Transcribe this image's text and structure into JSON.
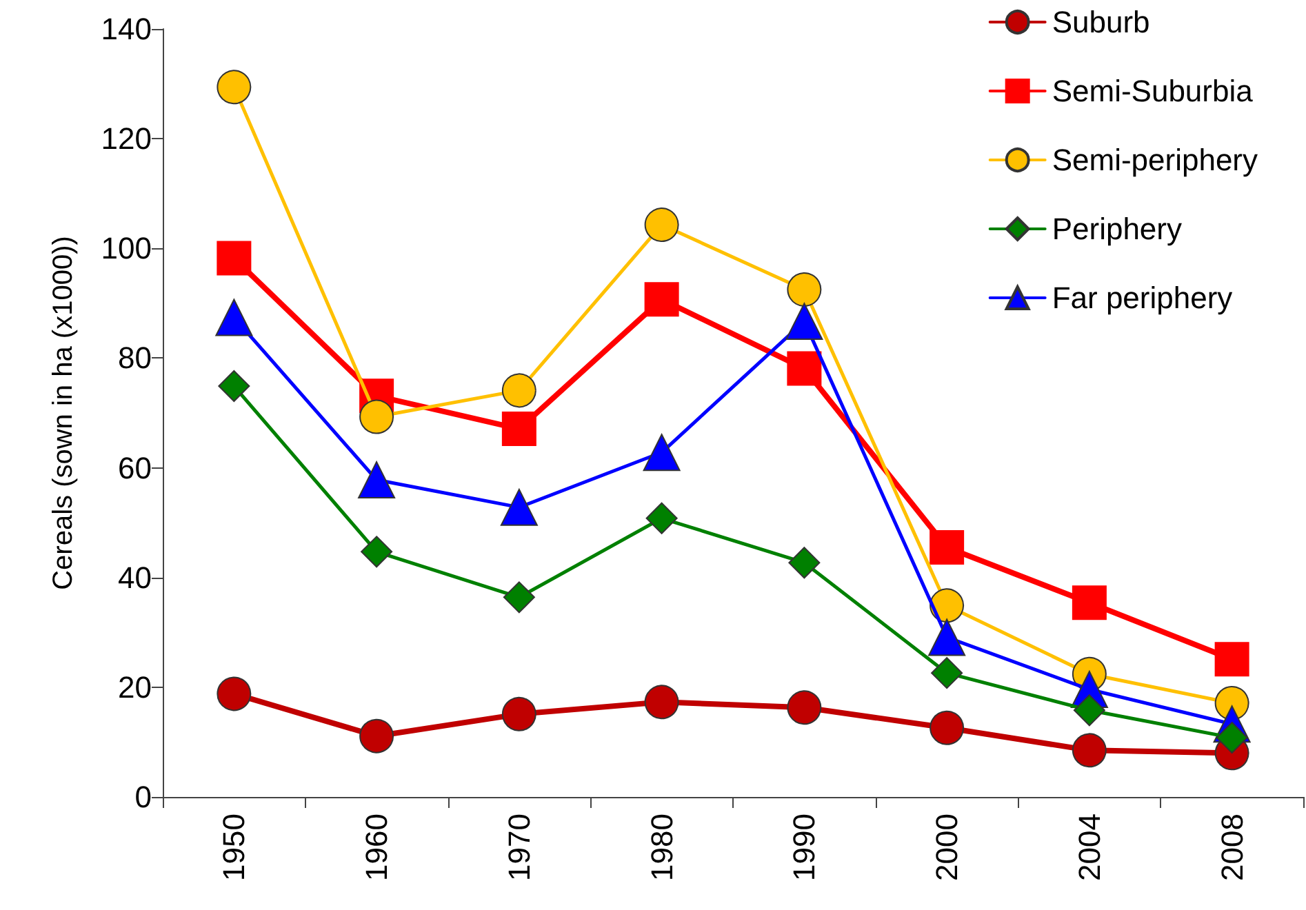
{
  "chart_data": {
    "type": "line",
    "ylabel": "Cereals (sown in ha (x1000))",
    "categories": [
      "1950",
      "1960",
      "1970",
      "1980",
      "1990",
      "2000",
      "2004",
      "2008"
    ],
    "ylim": [
      0,
      140
    ],
    "yticks": [
      0,
      20,
      40,
      60,
      80,
      100,
      120,
      140
    ],
    "grid": false,
    "legend": "top right",
    "series": [
      {
        "name": "Suburb",
        "color": "#c00000",
        "marker": "circle",
        "values": [
          18.8,
          11.1,
          15.1,
          17.3,
          16.3,
          12.6,
          8.5,
          8.0
        ]
      },
      {
        "name": "Semi-Suburbia",
        "color": "#ff0000",
        "marker": "square",
        "values": [
          98.2,
          73.1,
          67.1,
          90.7,
          78.1,
          45.5,
          35.4,
          25.1
        ]
      },
      {
        "name": "Semi-periphery",
        "color": "#ffc000",
        "marker": "circle",
        "values": [
          129.4,
          69.3,
          74.1,
          104.3,
          92.5,
          34.9,
          22.4,
          17.1
        ]
      },
      {
        "name": "Periphery",
        "color": "#008000",
        "marker": "diamond",
        "values": [
          74.9,
          44.7,
          36.4,
          50.8,
          42.7,
          22.6,
          15.8,
          10.8
        ]
      },
      {
        "name": "Far periphery",
        "color": "#0000ff",
        "marker": "triangle",
        "values": [
          87.4,
          57.8,
          52.8,
          62.8,
          86.7,
          29.1,
          19.6,
          13.3
        ]
      }
    ]
  }
}
